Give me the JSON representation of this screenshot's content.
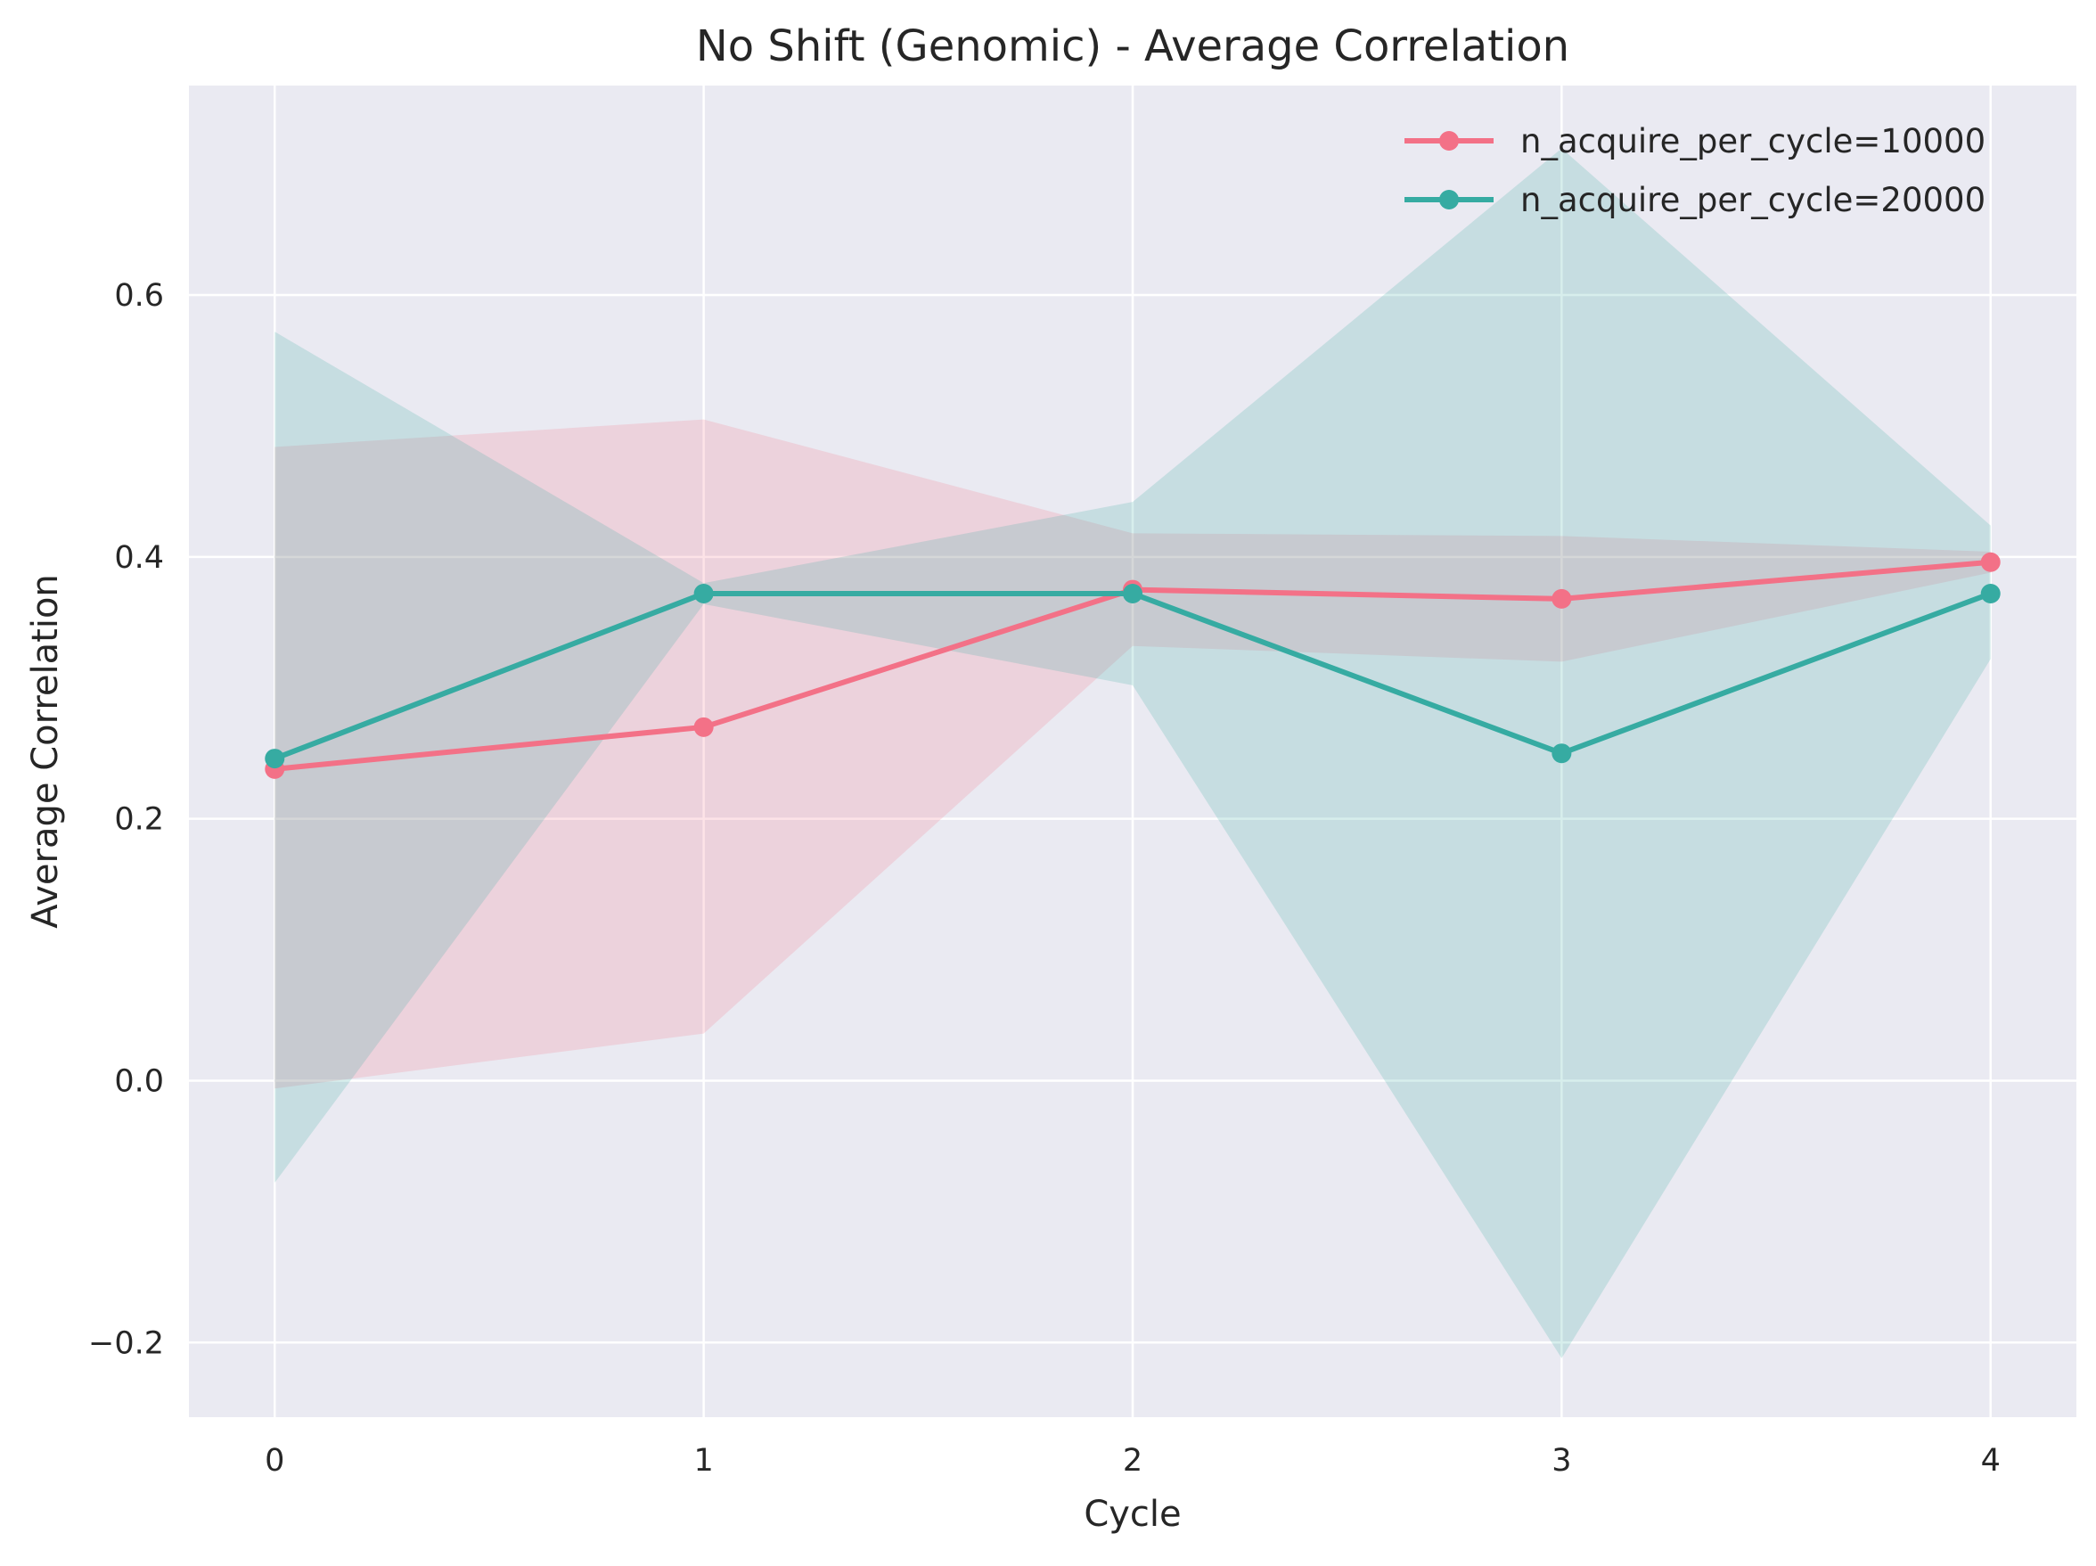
{
  "chart_data": {
    "type": "line",
    "title": "No Shift (Genomic) - Average Correlation",
    "xlabel": "Cycle",
    "ylabel": "Average Correlation",
    "x": [
      0,
      1,
      2,
      3,
      4
    ],
    "xticks": [
      "0",
      "1",
      "2",
      "3",
      "4"
    ],
    "yticks": [
      -0.2,
      0.0,
      0.2,
      0.4,
      0.6
    ],
    "ytick_labels": [
      "−0.2",
      "0.0",
      "0.2",
      "0.4",
      "0.6"
    ],
    "xlim": [
      -0.2,
      4.2
    ],
    "ylim": [
      -0.257,
      0.76
    ],
    "grid": true,
    "legend_position": "top-right",
    "series": [
      {
        "name": "n_acquire_per_cycle=10000",
        "color": "#f37187",
        "values": [
          0.238,
          0.27,
          0.375,
          0.368,
          0.396
        ],
        "band_upper": [
          0.484,
          0.505,
          0.418,
          0.416,
          0.404
        ],
        "band_lower": [
          -0.006,
          0.036,
          0.332,
          0.32,
          0.388
        ]
      },
      {
        "name": "n_acquire_per_cycle=20000",
        "color": "#36aba2",
        "values": [
          0.246,
          0.372,
          0.372,
          0.25,
          0.372
        ],
        "band_upper": [
          0.572,
          0.38,
          0.442,
          0.712,
          0.424
        ],
        "band_lower": [
          -0.078,
          0.364,
          0.302,
          -0.212,
          0.322
        ]
      }
    ]
  }
}
